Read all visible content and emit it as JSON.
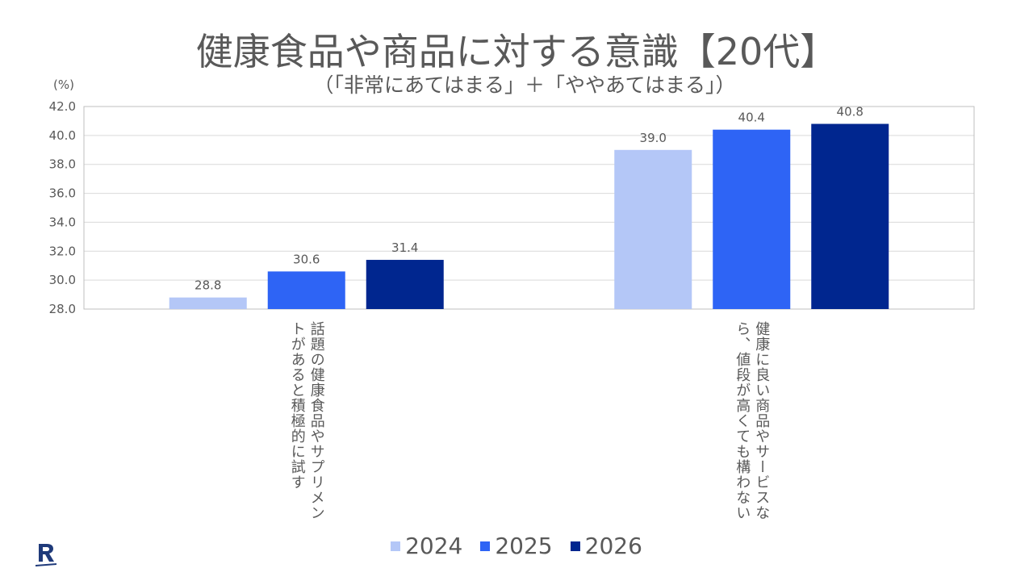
{
  "chart_data": {
    "type": "bar",
    "title": "健康食品や商品に対する意識【20代】",
    "subtitle": "（「非常にあてはまる」＋「ややあてはまる」）",
    "unit_label": "(%)",
    "ylim": [
      28.0,
      42.0
    ],
    "yticks": [
      "42.0",
      "40.0",
      "38.0",
      "36.0",
      "34.0",
      "32.0",
      "30.0",
      "28.0"
    ],
    "ytick_values": [
      42.0,
      40.0,
      38.0,
      36.0,
      34.0,
      32.0,
      30.0,
      28.0
    ],
    "grid": true,
    "legend_position": "bottom",
    "categories": [
      "話題の健康食品やサプリメントがあると積極的に試す",
      "健康に良い商品やサービスなら、値段が高くても構わない"
    ],
    "series": [
      {
        "name": "2024",
        "color": "#b4c7f7",
        "values": [
          28.8,
          39.0
        ],
        "labels": [
          "28.8",
          "39.0"
        ]
      },
      {
        "name": "2025",
        "color": "#2e64f5",
        "values": [
          30.6,
          40.4
        ],
        "labels": [
          "30.6",
          "40.4"
        ]
      },
      {
        "name": "2026",
        "color": "#00268f",
        "values": [
          31.4,
          40.8
        ],
        "labels": [
          "31.4",
          "40.8"
        ]
      }
    ]
  },
  "logo": {
    "icon": "rakuten-r-logo",
    "color": "#1f3a7a"
  }
}
